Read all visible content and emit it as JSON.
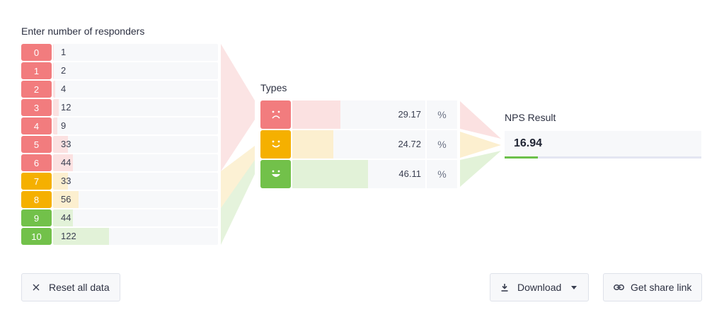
{
  "responders": {
    "heading": "Enter number of responders",
    "rows": [
      {
        "score": "0",
        "count": "1",
        "value": 1,
        "kind": "detractor"
      },
      {
        "score": "1",
        "count": "2",
        "value": 2,
        "kind": "detractor"
      },
      {
        "score": "2",
        "count": "4",
        "value": 4,
        "kind": "detractor"
      },
      {
        "score": "3",
        "count": "12",
        "value": 12,
        "kind": "detractor"
      },
      {
        "score": "4",
        "count": "9",
        "value": 9,
        "kind": "detractor"
      },
      {
        "score": "5",
        "count": "33",
        "value": 33,
        "kind": "detractor"
      },
      {
        "score": "6",
        "count": "44",
        "value": 44,
        "kind": "detractor"
      },
      {
        "score": "7",
        "count": "33",
        "value": 33,
        "kind": "passive"
      },
      {
        "score": "8",
        "count": "56",
        "value": 56,
        "kind": "passive"
      },
      {
        "score": "9",
        "count": "44",
        "value": 44,
        "kind": "promoter"
      },
      {
        "score": "10",
        "count": "122",
        "value": 122,
        "kind": "promoter"
      }
    ]
  },
  "types": {
    "heading": "Types",
    "rows": [
      {
        "name": "detractors",
        "icon": "sad-face-icon",
        "value": "29.17",
        "fraction": 0.2917,
        "unit": "%",
        "kind": "detractor"
      },
      {
        "name": "passives",
        "icon": "neutral-smile-icon",
        "value": "24.72",
        "fraction": 0.2472,
        "unit": "%",
        "kind": "passive"
      },
      {
        "name": "promoters",
        "icon": "happy-face-icon",
        "value": "46.11",
        "fraction": 0.4611,
        "unit": "%",
        "kind": "promoter"
      }
    ]
  },
  "nps": {
    "heading": "NPS Result",
    "value": "16.94",
    "fraction": 0.1694
  },
  "actions": {
    "reset_label": "Reset all data",
    "download_label": "Download",
    "share_label": "Get share link"
  },
  "colors": {
    "detractor": "#f27c7e",
    "detractor_light": "#fbe1e1",
    "passive": "#f5b000",
    "passive_light": "#fcefcf",
    "promoter": "#72c14a",
    "promoter_light": "#e2f2d8"
  }
}
